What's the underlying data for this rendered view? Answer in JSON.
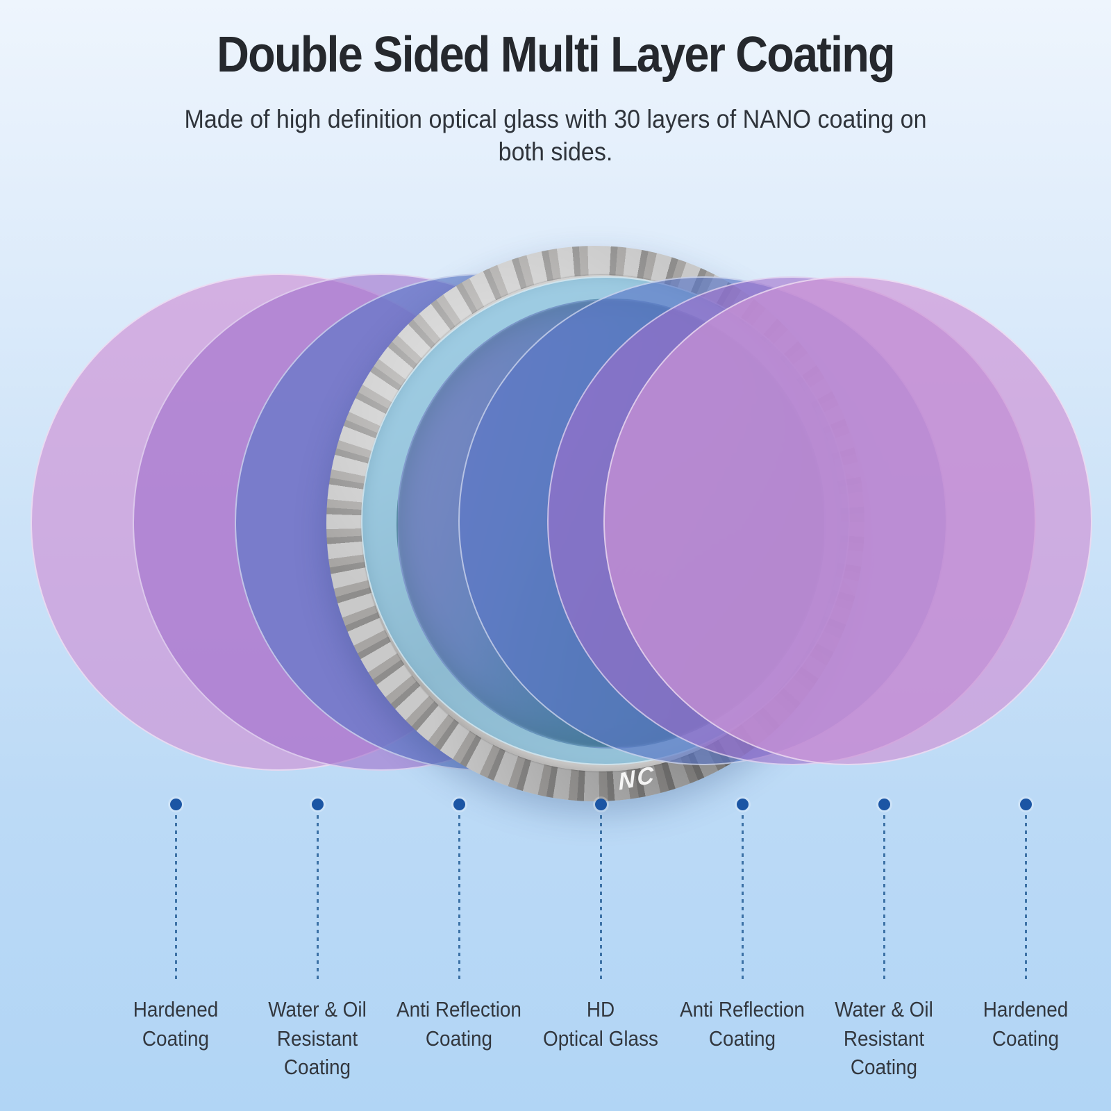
{
  "header": {
    "title": "Double Sided Multi Layer Coating",
    "subtitle": "Made of high definition optical glass with 30 layers of NANO coating on\nboth sides."
  },
  "lens": {
    "badge": "NC",
    "description": "camera-filter-lens"
  },
  "layers": {
    "left": [
      "Hardened Coating",
      "Water & Oil Resistant Coating",
      "Anti Reflection Coating",
      "HD Optical Glass (inner)"
    ],
    "right": [
      "HD Optical Glass (inner)",
      "Anti Reflection Coating",
      "Water & Oil Resistant Coating",
      "Hardened Coating"
    ]
  },
  "callouts": {
    "items": [
      {
        "label": "Hardened\nCoating"
      },
      {
        "label": "Water & Oil\nResistant\nCoating"
      },
      {
        "label": "Anti Reflection\nCoating"
      },
      {
        "label": "HD\nOptical Glass"
      },
      {
        "label": "Anti Reflection\nCoating"
      },
      {
        "label": "Water & Oil\nResistant\nCoating"
      },
      {
        "label": "Hardened\nCoating"
      }
    ]
  },
  "palette": {
    "bgTop": "#eef5fd",
    "bgBottom": "#b1d5f5",
    "titleColor": "#25282d",
    "subtitleColor": "#2f343b",
    "labelColor": "#32373e",
    "dotColor": "#1b55a4",
    "lineColor": "#3d72a6",
    "layerPink": "rgba(206,147,213,0.68)",
    "layerPurple": "rgba(160,110,204,0.60)",
    "layerBlue": "rgba(90,118,198,0.65)",
    "layerCyan": "rgba(105,182,220,0.60)",
    "ringLight": "#c9c9c9",
    "ringDark": "#a7a5a3",
    "glassPurple": "#9a50a5",
    "glassNavy": "#27476c",
    "glassDark": "#05080d",
    "badgeColor": "#fdfdfd"
  }
}
